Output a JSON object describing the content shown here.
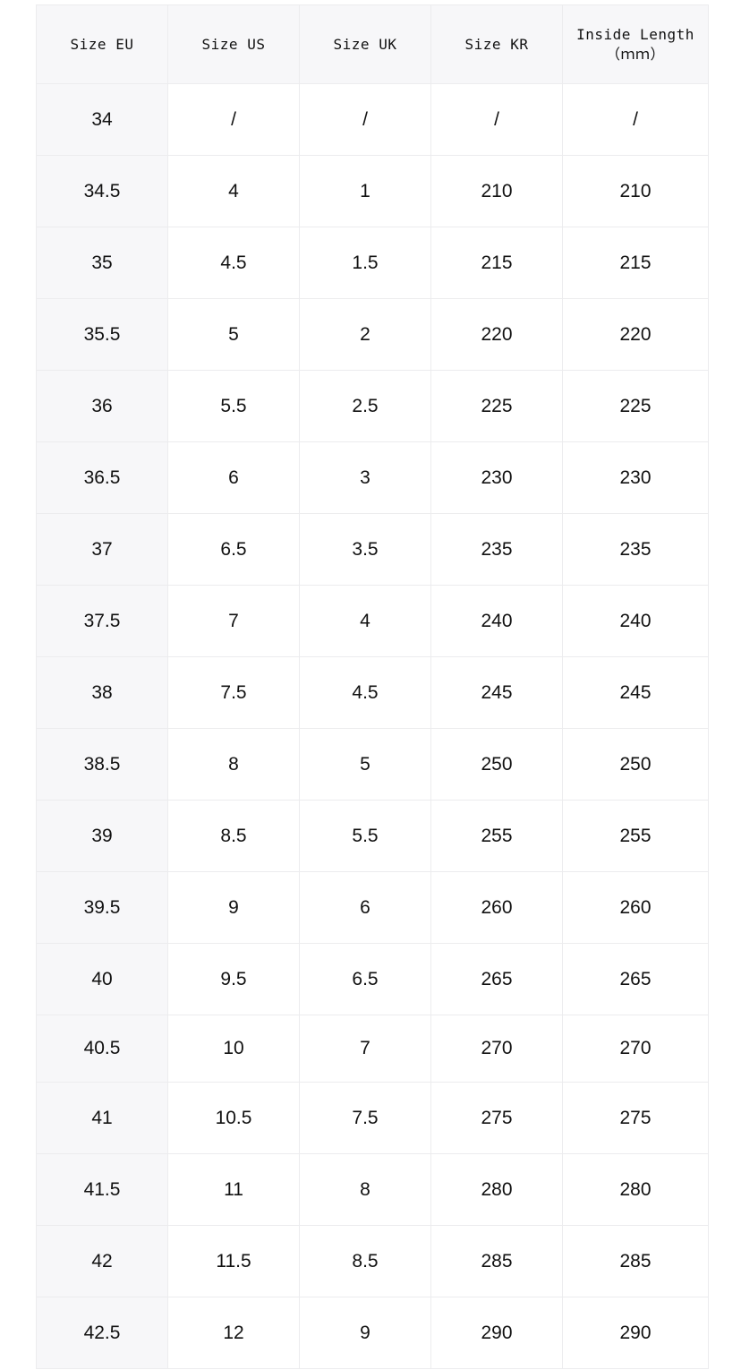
{
  "table": {
    "headers": [
      "Size EU",
      "Size US",
      "Size UK",
      "Size KR",
      "Inside Length\n（ｍｍ）"
    ],
    "rows": [
      [
        "34",
        "/",
        "/",
        "/",
        "/"
      ],
      [
        "34.5",
        "4",
        "1",
        "210",
        "210"
      ],
      [
        "35",
        "4.5",
        "1.5",
        "215",
        "215"
      ],
      [
        "35.5",
        "5",
        "2",
        "220",
        "220"
      ],
      [
        "36",
        "5.5",
        "2.5",
        "225",
        "225"
      ],
      [
        "36.5",
        "6",
        "3",
        "230",
        "230"
      ],
      [
        "37",
        "6.5",
        "3.5",
        "235",
        "235"
      ],
      [
        "37.5",
        "7",
        "4",
        "240",
        "240"
      ],
      [
        "38",
        "7.5",
        "4.5",
        "245",
        "245"
      ],
      [
        "38.5",
        "8",
        "5",
        "250",
        "250"
      ],
      [
        "39",
        "8.5",
        "5.5",
        "255",
        "255"
      ],
      [
        "39.5",
        "9",
        "6",
        "260",
        "260"
      ],
      [
        "40",
        "9.5",
        "6.5",
        "265",
        "265"
      ],
      [
        "40.5",
        "10",
        "7",
        "270",
        "270"
      ],
      [
        "41",
        "10.5",
        "7.5",
        "275",
        "275"
      ],
      [
        "41.5",
        "11",
        "8",
        "280",
        "280"
      ],
      [
        "42",
        "11.5",
        "8.5",
        "285",
        "285"
      ],
      [
        "42.5",
        "12",
        "9",
        "290",
        "290"
      ]
    ]
  }
}
